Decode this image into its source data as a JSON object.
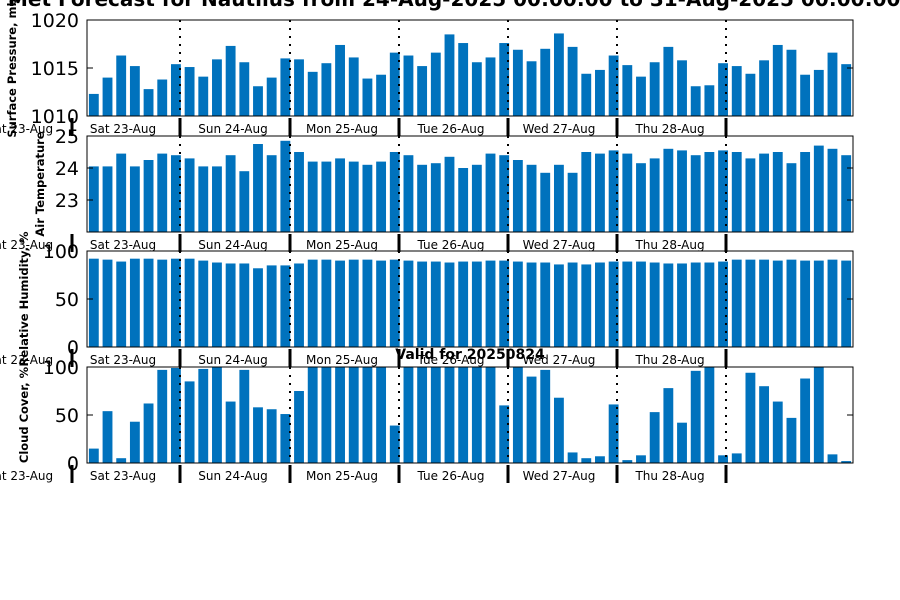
{
  "figure": {
    "title": "Met Forecast for Nautilus from 24-Aug-2025 00:00:00 to 31-Aug-2025 00:00:00",
    "subtitle": "Valid for 20250824"
  },
  "colors": {
    "bar": "#0072bd",
    "axes": "#000000",
    "background": "#ffffff"
  },
  "chart_data": [
    {
      "type": "bar",
      "ylabel": "Surface Pressure, mb",
      "ylim": [
        1010,
        1020
      ],
      "yticks": [
        1010,
        1015,
        1020
      ],
      "grid": false,
      "day_labels": [
        "Sat 23-Aug",
        "Sat 23-Aug",
        "Sun 24-Aug",
        "Mon 25-Aug",
        "Tue 26-Aug",
        "Wed 27-Aug",
        "Thu 28-Aug"
      ],
      "values": [
        1012.3,
        1014.0,
        1016.3,
        1015.2,
        1012.8,
        1013.8,
        1015.4,
        1015.1,
        1014.1,
        1015.9,
        1017.3,
        1015.6,
        1013.1,
        1014.0,
        1016.0,
        1015.9,
        1014.6,
        1015.5,
        1017.4,
        1016.1,
        1013.9,
        1014.3,
        1016.6,
        1016.3,
        1015.2,
        1016.6,
        1018.5,
        1017.6,
        1015.6,
        1016.1,
        1017.6,
        1016.9,
        1015.7,
        1017.0,
        1018.6,
        1017.2,
        1014.4,
        1014.8,
        1016.3,
        1015.3,
        1014.1,
        1015.6,
        1017.2,
        1015.8,
        1013.1,
        1013.2,
        1015.5,
        1015.2,
        1014.4,
        1015.8,
        1017.4,
        1016.9,
        1014.3,
        1014.8,
        1016.6,
        1015.4
      ]
    },
    {
      "type": "bar",
      "ylabel": "Air Temperature",
      "ylim": [
        22,
        25
      ],
      "yticks": [
        23,
        24,
        25
      ],
      "grid": false,
      "day_labels": [
        "Sat 23-Aug",
        "Sat 23-Aug",
        "Sun 24-Aug",
        "Mon 25-Aug",
        "Tue 26-Aug",
        "Wed 27-Aug",
        "Thu 28-Aug"
      ],
      "values": [
        24.05,
        24.05,
        24.45,
        24.05,
        24.25,
        24.45,
        24.4,
        24.3,
        24.05,
        24.05,
        24.4,
        23.9,
        24.75,
        24.4,
        24.85,
        24.5,
        24.2,
        24.2,
        24.3,
        24.2,
        24.1,
        24.2,
        24.5,
        24.4,
        24.1,
        24.15,
        24.35,
        24.0,
        24.1,
        24.45,
        24.4,
        24.25,
        24.1,
        23.85,
        24.1,
        23.85,
        24.5,
        24.45,
        24.55,
        24.45,
        24.15,
        24.3,
        24.6,
        24.55,
        24.4,
        24.5,
        24.55,
        24.5,
        24.3,
        24.45,
        24.5,
        24.15,
        24.5,
        24.7,
        24.6,
        24.4
      ]
    },
    {
      "type": "bar",
      "ylabel": "Relative Humidity, %",
      "ylim": [
        0,
        100
      ],
      "yticks": [
        0,
        50,
        100
      ],
      "grid": false,
      "day_labels": [
        "Sat 23-Aug",
        "Sat 23-Aug",
        "Sun 24-Aug",
        "Mon 25-Aug",
        "Tue 26-Aug",
        "Wed 27-Aug",
        "Thu 28-Aug"
      ],
      "values": [
        92,
        91,
        89,
        92,
        92,
        91,
        92,
        92,
        90,
        88,
        87,
        87,
        82,
        85,
        85,
        87,
        91,
        91,
        90,
        91,
        91,
        90,
        91,
        90,
        89,
        89,
        88,
        89,
        89,
        90,
        90,
        89,
        88,
        88,
        86,
        88,
        86,
        88,
        89,
        89,
        89,
        88,
        87,
        87,
        88,
        88,
        89,
        91,
        91,
        91,
        90,
        91,
        90,
        90,
        91,
        90
      ]
    },
    {
      "type": "bar",
      "ylabel": "Cloud Cover, %",
      "ylim": [
        0,
        100
      ],
      "yticks": [
        0,
        50,
        100
      ],
      "grid": false,
      "day_labels": [
        "Sat 23-Aug",
        "Sat 23-Aug",
        "Sun 24-Aug",
        "Mon 25-Aug",
        "Tue 26-Aug",
        "Wed 27-Aug",
        "Thu 28-Aug"
      ],
      "values": [
        15,
        54,
        5,
        43,
        62,
        97,
        99,
        85,
        98,
        100,
        64,
        97,
        58,
        56,
        51,
        75,
        100,
        100,
        100,
        100,
        100,
        100,
        39,
        100,
        100,
        100,
        100,
        100,
        100,
        100,
        60,
        100,
        90,
        97,
        68,
        11,
        5,
        7,
        61,
        3,
        8,
        53,
        78,
        42,
        96,
        100,
        8,
        10,
        94,
        80,
        64,
        47,
        88,
        100,
        9,
        2
      ]
    }
  ]
}
